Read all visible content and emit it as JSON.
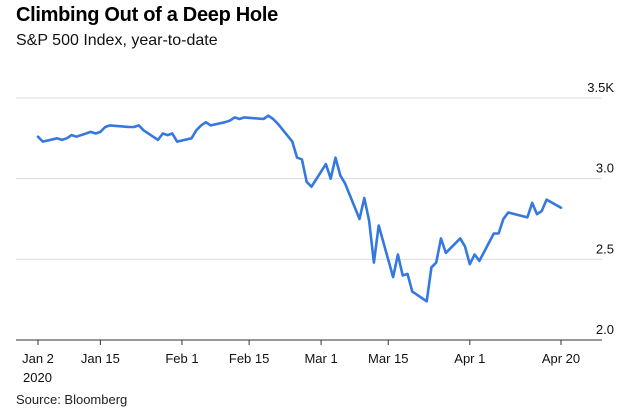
{
  "header": {
    "title": "Climbing Out of a Deep Hole",
    "subtitle": "S&P 500 Index, year-to-date"
  },
  "footer": {
    "source": "Source: Bloomberg"
  },
  "chart_data": {
    "type": "line",
    "title": "Climbing Out of a Deep Hole",
    "subtitle": "S&P 500 Index, year-to-date",
    "xlabel": "",
    "ylabel": "",
    "xlim": [
      "2020-01-02",
      "2020-04-20"
    ],
    "ylim": [
      2.0,
      3.5
    ],
    "grid": true,
    "legend": "none",
    "line_color": "#3478e0",
    "y_ticks": [
      {
        "value": 3.5,
        "label": "3.5K"
      },
      {
        "value": 3.0,
        "label": "3.0"
      },
      {
        "value": 2.5,
        "label": "2.5"
      },
      {
        "value": 2.0,
        "label": "2.0"
      }
    ],
    "x_ticks": [
      {
        "date": "2020-01-02",
        "label": "Jan 2",
        "sublabel": "2020"
      },
      {
        "date": "2020-01-15",
        "label": "Jan 15"
      },
      {
        "date": "2020-02-01",
        "label": "Feb 1"
      },
      {
        "date": "2020-02-15",
        "label": "Feb 15"
      },
      {
        "date": "2020-03-01",
        "label": "Mar 1"
      },
      {
        "date": "2020-03-15",
        "label": "Mar 15"
      },
      {
        "date": "2020-04-01",
        "label": "Apr 1"
      },
      {
        "date": "2020-04-20",
        "label": "Apr 20"
      }
    ],
    "series": [
      {
        "x": [
          "2020-01-02",
          "2020-01-03",
          "2020-01-06",
          "2020-01-07",
          "2020-01-08",
          "2020-01-09",
          "2020-01-10",
          "2020-01-13",
          "2020-01-14",
          "2020-01-15",
          "2020-01-16",
          "2020-01-17",
          "2020-01-21",
          "2020-01-22",
          "2020-01-23",
          "2020-01-24",
          "2020-01-27",
          "2020-01-28",
          "2020-01-29",
          "2020-01-30",
          "2020-01-31",
          "2020-02-03",
          "2020-02-04",
          "2020-02-05",
          "2020-02-06",
          "2020-02-07",
          "2020-02-10",
          "2020-02-11",
          "2020-02-12",
          "2020-02-13",
          "2020-02-14",
          "2020-02-18",
          "2020-02-19",
          "2020-02-20",
          "2020-02-21",
          "2020-02-24",
          "2020-02-25",
          "2020-02-26",
          "2020-02-27",
          "2020-02-28",
          "2020-03-02",
          "2020-03-03",
          "2020-03-04",
          "2020-03-05",
          "2020-03-06",
          "2020-03-09",
          "2020-03-10",
          "2020-03-11",
          "2020-03-12",
          "2020-03-13",
          "2020-03-16",
          "2020-03-17",
          "2020-03-18",
          "2020-03-19",
          "2020-03-20",
          "2020-03-23",
          "2020-03-24",
          "2020-03-25",
          "2020-03-26",
          "2020-03-27",
          "2020-03-30",
          "2020-03-31",
          "2020-04-01",
          "2020-04-02",
          "2020-04-03",
          "2020-04-06",
          "2020-04-07",
          "2020-04-08",
          "2020-04-09",
          "2020-04-13",
          "2020-04-14",
          "2020-04-15",
          "2020-04-16",
          "2020-04-17",
          "2020-04-20"
        ],
        "values": [
          3.26,
          3.23,
          3.25,
          3.24,
          3.25,
          3.27,
          3.26,
          3.29,
          3.28,
          3.29,
          3.32,
          3.33,
          3.32,
          3.32,
          3.33,
          3.3,
          3.24,
          3.28,
          3.27,
          3.28,
          3.23,
          3.25,
          3.3,
          3.33,
          3.35,
          3.33,
          3.35,
          3.36,
          3.38,
          3.37,
          3.38,
          3.37,
          3.39,
          3.37,
          3.34,
          3.23,
          3.13,
          3.12,
          2.98,
          2.95,
          3.09,
          3.0,
          3.13,
          3.02,
          2.97,
          2.75,
          2.88,
          2.74,
          2.48,
          2.71,
          2.39,
          2.53,
          2.4,
          2.41,
          2.3,
          2.24,
          2.45,
          2.48,
          2.63,
          2.54,
          2.63,
          2.58,
          2.47,
          2.53,
          2.49,
          2.66,
          2.66,
          2.75,
          2.79,
          2.76,
          2.85,
          2.78,
          2.8,
          2.87,
          2.82
        ]
      }
    ]
  }
}
